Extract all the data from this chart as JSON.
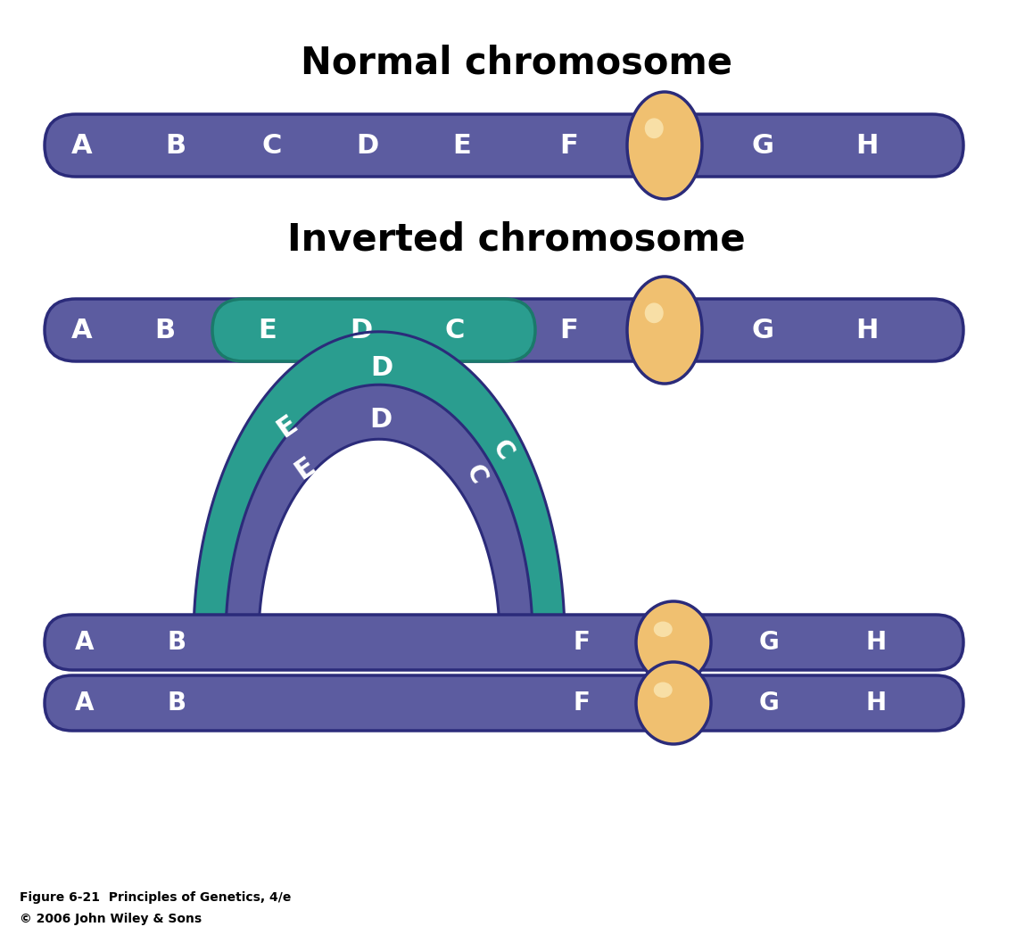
{
  "title1": "Normal chromosome",
  "title2": "Inverted chromosome",
  "chromosome_color": "#5C5CA0",
  "chromosome_border": "#2B2B7A",
  "teal_color": "#2A9D8F",
  "teal_border": "#1A7A6A",
  "centromere_color": "#F0C070",
  "centromere_border": "#2B2B7A",
  "white": "#FFFFFF",
  "black": "#000000",
  "normal_labels": [
    "A",
    "B",
    "C",
    "D",
    "E",
    "F",
    "G",
    "H"
  ],
  "inverted_labels": [
    "A",
    "B",
    "E",
    "D",
    "C",
    "F",
    "G",
    "H"
  ],
  "caption_line1": "Figure 6-21  Principles of Genetics, 4/e",
  "caption_line2": "© 2006 John Wiley & Sons"
}
